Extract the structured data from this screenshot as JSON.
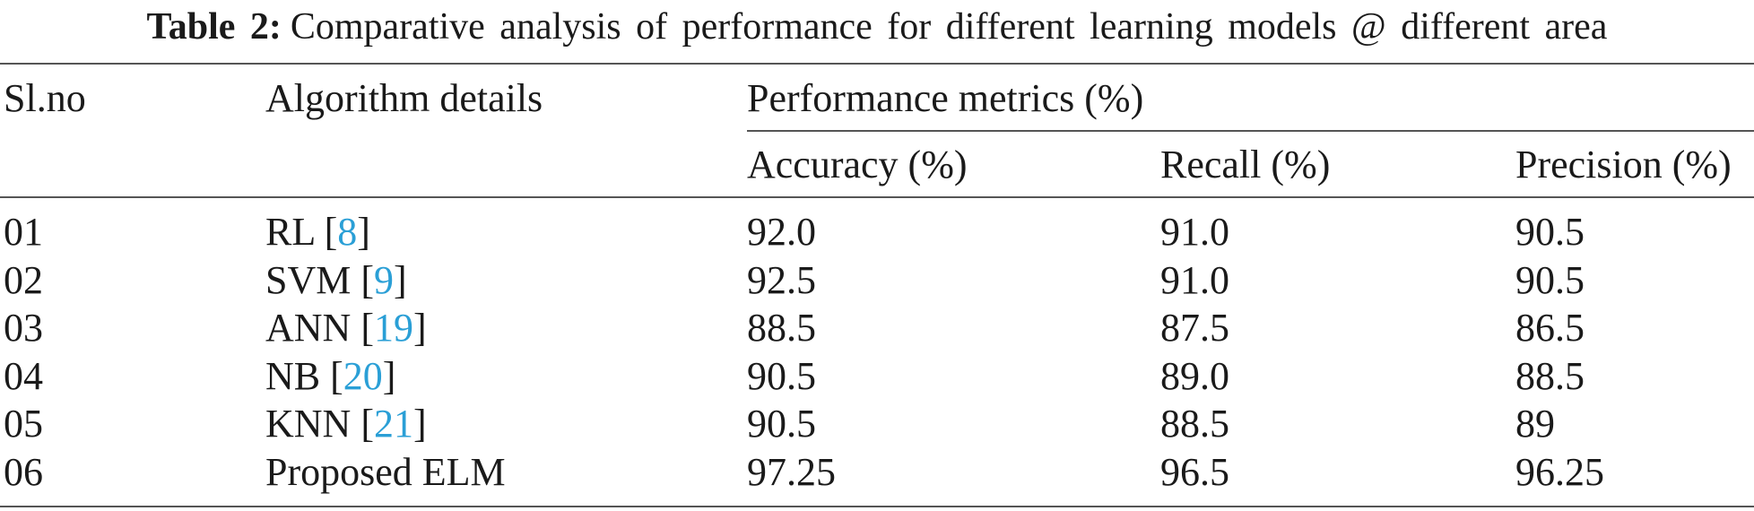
{
  "caption": {
    "label": "Table 2:",
    "text": "Comparative analysis of performance for different learning models @ different area"
  },
  "table": {
    "header": {
      "slno": "Sl.no",
      "algorithm": "Algorithm details",
      "group": "Performance metrics (%)",
      "columns": [
        "Accuracy (%)",
        "Recall (%)",
        "Precision (%)"
      ]
    },
    "rows": [
      [
        "01",
        "RL [8]",
        "92.0",
        "91.0",
        "90.5"
      ],
      [
        "02",
        "SVM [9]",
        "92.5",
        "91.0",
        "90.5"
      ],
      [
        "03",
        "ANN [19]",
        "88.5",
        "87.5",
        "86.5"
      ],
      [
        "04",
        "NB [20]",
        "90.5",
        "89.0",
        "88.5"
      ],
      [
        "05",
        "KNN [21]",
        "90.5",
        "88.5",
        "89"
      ],
      [
        "06",
        "Proposed ELM",
        "97.25",
        "96.5",
        "96.25"
      ]
    ]
  }
}
